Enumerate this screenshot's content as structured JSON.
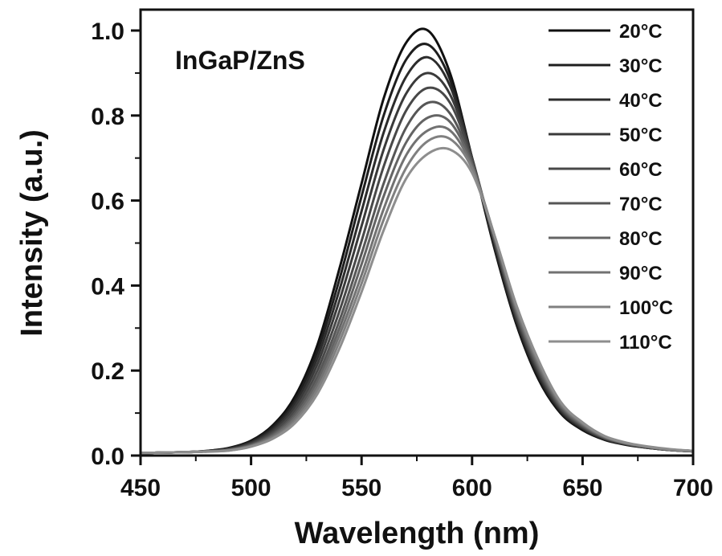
{
  "chart_data": {
    "type": "line",
    "title": "",
    "annotation": "InGaP/ZnS",
    "xlabel": "Wavelength (nm)",
    "ylabel": "Intensity (a.u.)",
    "xlim": [
      450,
      700
    ],
    "ylim": [
      0.0,
      1.0
    ],
    "xticks": [
      "450",
      "500",
      "550",
      "600",
      "650",
      "700"
    ],
    "yticks": [
      "0.0",
      "0.2",
      "0.4",
      "0.6",
      "0.8",
      "1.0"
    ],
    "grid": false,
    "legend_position": "top-right",
    "x": [
      450,
      460,
      470,
      480,
      490,
      500,
      510,
      520,
      530,
      540,
      550,
      560,
      570,
      580,
      590,
      600,
      610,
      620,
      630,
      640,
      650,
      660,
      670,
      680,
      690,
      700
    ],
    "series": [
      {
        "name": "20°C",
        "values": [
          0.006,
          0.007,
          0.008,
          0.011,
          0.018,
          0.035,
          0.072,
          0.14,
          0.26,
          0.44,
          0.64,
          0.84,
          0.97,
          1.0,
          0.9,
          0.7,
          0.49,
          0.31,
          0.18,
          0.1,
          0.06,
          0.037,
          0.025,
          0.018,
          0.013,
          0.01
        ]
      },
      {
        "name": "30°C",
        "values": [
          0.006,
          0.007,
          0.008,
          0.011,
          0.017,
          0.033,
          0.068,
          0.132,
          0.245,
          0.415,
          0.61,
          0.8,
          0.93,
          0.967,
          0.885,
          0.7,
          0.495,
          0.315,
          0.185,
          0.103,
          0.062,
          0.038,
          0.026,
          0.018,
          0.013,
          0.01
        ]
      },
      {
        "name": "40°C",
        "values": [
          0.006,
          0.007,
          0.008,
          0.01,
          0.016,
          0.031,
          0.063,
          0.124,
          0.23,
          0.39,
          0.575,
          0.76,
          0.89,
          0.937,
          0.87,
          0.7,
          0.5,
          0.32,
          0.19,
          0.106,
          0.064,
          0.039,
          0.026,
          0.018,
          0.013,
          0.01
        ]
      },
      {
        "name": "50°C",
        "values": [
          0.006,
          0.007,
          0.008,
          0.01,
          0.015,
          0.029,
          0.059,
          0.116,
          0.215,
          0.365,
          0.54,
          0.72,
          0.85,
          0.9,
          0.85,
          0.7,
          0.505,
          0.325,
          0.195,
          0.109,
          0.066,
          0.04,
          0.027,
          0.019,
          0.013,
          0.01
        ]
      },
      {
        "name": "60°C",
        "values": [
          0.006,
          0.007,
          0.008,
          0.01,
          0.014,
          0.027,
          0.055,
          0.108,
          0.2,
          0.34,
          0.505,
          0.68,
          0.81,
          0.865,
          0.83,
          0.695,
          0.51,
          0.33,
          0.2,
          0.112,
          0.068,
          0.041,
          0.027,
          0.019,
          0.013,
          0.01
        ]
      },
      {
        "name": "70°C",
        "values": [
          0.006,
          0.007,
          0.008,
          0.01,
          0.014,
          0.025,
          0.051,
          0.1,
          0.186,
          0.318,
          0.475,
          0.64,
          0.77,
          0.83,
          0.805,
          0.69,
          0.51,
          0.335,
          0.205,
          0.115,
          0.07,
          0.042,
          0.028,
          0.019,
          0.014,
          0.011
        ]
      },
      {
        "name": "80°C",
        "values": [
          0.006,
          0.007,
          0.008,
          0.01,
          0.013,
          0.024,
          0.048,
          0.094,
          0.175,
          0.3,
          0.45,
          0.61,
          0.735,
          0.795,
          0.785,
          0.685,
          0.515,
          0.34,
          0.21,
          0.118,
          0.072,
          0.043,
          0.028,
          0.02,
          0.014,
          0.011
        ]
      },
      {
        "name": "90°C",
        "values": [
          0.006,
          0.007,
          0.008,
          0.01,
          0.013,
          0.023,
          0.045,
          0.088,
          0.165,
          0.284,
          0.425,
          0.58,
          0.705,
          0.765,
          0.765,
          0.68,
          0.52,
          0.345,
          0.215,
          0.121,
          0.074,
          0.044,
          0.029,
          0.02,
          0.014,
          0.011
        ]
      },
      {
        "name": "100°C",
        "values": [
          0.006,
          0.007,
          0.008,
          0.01,
          0.012,
          0.022,
          0.042,
          0.082,
          0.155,
          0.268,
          0.405,
          0.555,
          0.675,
          0.74,
          0.745,
          0.675,
          0.52,
          0.35,
          0.22,
          0.124,
          0.076,
          0.045,
          0.029,
          0.02,
          0.014,
          0.011
        ]
      },
      {
        "name": "110°C",
        "values": [
          0.006,
          0.007,
          0.008,
          0.009,
          0.012,
          0.021,
          0.04,
          0.077,
          0.145,
          0.252,
          0.385,
          0.53,
          0.65,
          0.71,
          0.72,
          0.665,
          0.52,
          0.355,
          0.225,
          0.127,
          0.078,
          0.046,
          0.03,
          0.021,
          0.015,
          0.011
        ]
      }
    ],
    "colors": {
      "axis": "#111111",
      "series": [
        "#101010",
        "#1e1e1e",
        "#2c2c2c",
        "#3a3a3a",
        "#484848",
        "#565656",
        "#646464",
        "#727272",
        "#808080",
        "#8e8e8e"
      ]
    }
  }
}
